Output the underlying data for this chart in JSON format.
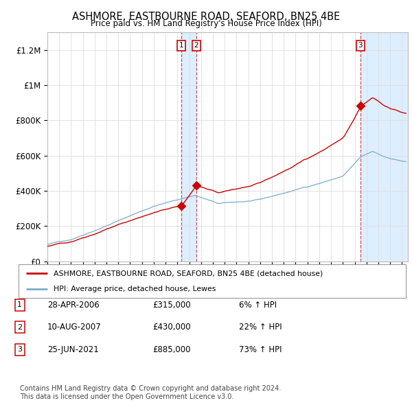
{
  "title": "ASHMORE, EASTBOURNE ROAD, SEAFORD, BN25 4BE",
  "subtitle": "Price paid vs. HM Land Registry's House Price Index (HPI)",
  "ylabel_ticks": [
    "£0",
    "£200K",
    "£400K",
    "£600K",
    "£800K",
    "£1M",
    "£1.2M"
  ],
  "ytick_vals": [
    0,
    200000,
    400000,
    600000,
    800000,
    1000000,
    1200000
  ],
  "ylim": [
    0,
    1300000
  ],
  "xlim_start": 1995.0,
  "xlim_end": 2025.5,
  "sale_dates": [
    2006.33,
    2007.61,
    2021.48
  ],
  "sale_prices": [
    315000,
    430000,
    885000
  ],
  "sale_labels": [
    "1",
    "2",
    "3"
  ],
  "red_line_color": "#cc0000",
  "blue_line_color": "#7aaccc",
  "shade_color": "#ddeeff",
  "dashed_line_color": "#cc3333",
  "legend_label_red": "ASHMORE, EASTBOURNE ROAD, SEAFORD, BN25 4BE (detached house)",
  "legend_label_blue": "HPI: Average price, detached house, Lewes",
  "table_entries": [
    {
      "num": "1",
      "date": "28-APR-2006",
      "price": "£315,000",
      "change": "6% ↑ HPI"
    },
    {
      "num": "2",
      "date": "10-AUG-2007",
      "price": "£430,000",
      "change": "22% ↑ HPI"
    },
    {
      "num": "3",
      "date": "25-JUN-2021",
      "price": "£885,000",
      "change": "73% ↑ HPI"
    }
  ],
  "footnote": "Contains HM Land Registry data © Crown copyright and database right 2024.\nThis data is licensed under the Open Government Licence v3.0.",
  "background_color": "#ffffff",
  "plot_bg_color": "#ffffff",
  "grid_color": "#dddddd"
}
